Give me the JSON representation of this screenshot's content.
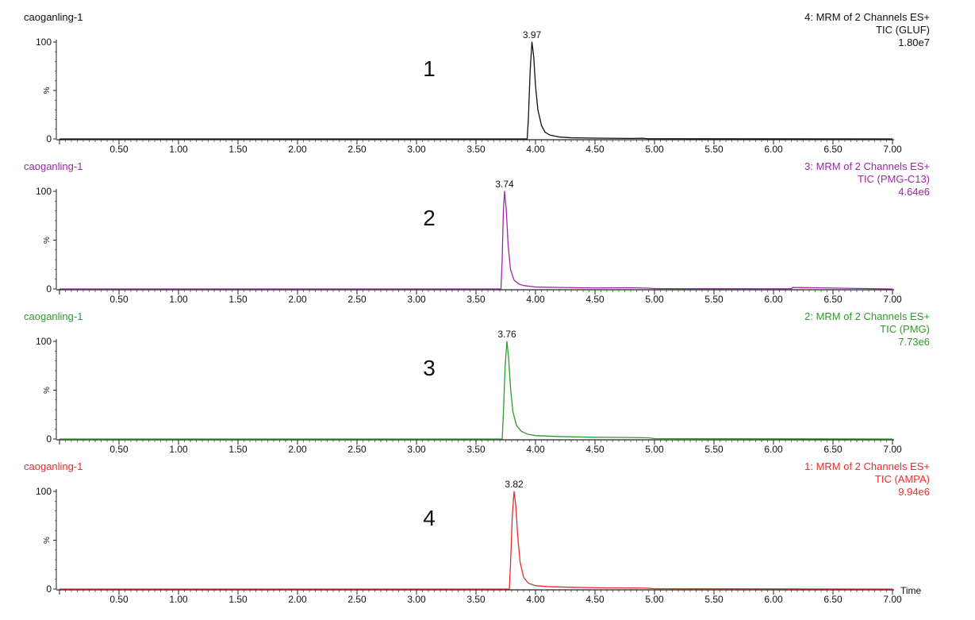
{
  "chart_data": [
    {
      "type": "line",
      "sample": "caoganling-1",
      "panel_number": "1",
      "header": [
        "4: MRM of 2 Channels ES+",
        "TIC (GLUF)",
        "1.80e7"
      ],
      "ylabel": "%",
      "xlim": [
        0,
        7.0
      ],
      "ylim": [
        0,
        100
      ],
      "xticks": [
        "0.50",
        "1.00",
        "1.50",
        "2.00",
        "2.50",
        "3.00",
        "3.50",
        "4.00",
        "4.50",
        "5.00",
        "5.50",
        "6.00",
        "6.50",
        "7.00"
      ],
      "yticks": [
        "0",
        "100"
      ],
      "peak_label": "3.97",
      "color": "#111111",
      "series": [
        {
          "x": [
            0,
            3.93,
            3.94,
            3.955,
            3.97,
            3.985,
            4.0,
            4.02,
            4.05,
            4.08,
            4.12,
            4.2,
            4.3,
            4.5,
            4.8,
            4.9,
            4.95,
            7.0
          ],
          "y": [
            0,
            0,
            20,
            70,
            100,
            85,
            55,
            30,
            14,
            7,
            4,
            2,
            1.2,
            0.8,
            0.5,
            0.7,
            0.2,
            0
          ]
        }
      ]
    },
    {
      "type": "line",
      "sample": "caoganling-1",
      "panel_number": "2",
      "header": [
        "3: MRM of 2 Channels ES+",
        "TIC (PMG-C13)",
        "4.64e6"
      ],
      "ylabel": "%",
      "xlim": [
        0,
        7.0
      ],
      "ylim": [
        0,
        100
      ],
      "xticks": [
        "0.50",
        "1.00",
        "1.50",
        "2.00",
        "2.50",
        "3.00",
        "3.50",
        "4.00",
        "4.50",
        "5.00",
        "5.50",
        "6.00",
        "6.50",
        "7.00"
      ],
      "yticks": [
        "0",
        "100"
      ],
      "peak_label": "3.74",
      "color": "#9b27a8",
      "series": [
        {
          "x": [
            0,
            3.71,
            3.72,
            3.73,
            3.74,
            3.755,
            3.77,
            3.79,
            3.82,
            3.86,
            3.9,
            4.0,
            4.2,
            4.5,
            4.8,
            4.95,
            5.0,
            6.15,
            6.16,
            7.0
          ],
          "y": [
            0,
            0,
            30,
            80,
            100,
            80,
            45,
            20,
            9,
            5,
            3.5,
            2,
            1.5,
            1,
            1.2,
            0.8,
            0.3,
            0.2,
            1.5,
            0
          ]
        }
      ]
    },
    {
      "type": "line",
      "sample": "caoganling-1",
      "panel_number": "3",
      "header": [
        "2: MRM of 2 Channels ES+",
        "TIC (PMG)",
        "7.73e6"
      ],
      "ylabel": "%",
      "xlim": [
        0,
        7.0
      ],
      "ylim": [
        0,
        100
      ],
      "xticks": [
        "0.50",
        "1.00",
        "1.50",
        "2.00",
        "2.50",
        "3.00",
        "3.50",
        "4.00",
        "4.50",
        "5.00",
        "5.50",
        "6.00",
        "6.50",
        "7.00"
      ],
      "yticks": [
        "0",
        "100"
      ],
      "peak_label": "3.76",
      "color": "#2e9b2e",
      "series": [
        {
          "x": [
            0,
            3.72,
            3.73,
            3.745,
            3.76,
            3.775,
            3.79,
            3.81,
            3.84,
            3.88,
            3.93,
            4.0,
            4.2,
            4.5,
            4.8,
            4.95,
            5.0,
            7.0
          ],
          "y": [
            0,
            0,
            25,
            75,
            100,
            82,
            52,
            28,
            14,
            8,
            5,
            3.5,
            2.5,
            1.8,
            1.5,
            1.2,
            0.4,
            0
          ]
        }
      ]
    },
    {
      "type": "line",
      "sample": "caoganling-1",
      "panel_number": "4",
      "header": [
        "1: MRM of 2 Channels ES+",
        "TIC (AMPA)",
        "9.94e6"
      ],
      "ylabel": "%",
      "xlabel": "Time",
      "xlim": [
        0,
        7.0
      ],
      "ylim": [
        0,
        100
      ],
      "xticks": [
        "0.50",
        "1.00",
        "1.50",
        "2.00",
        "2.50",
        "3.00",
        "3.50",
        "4.00",
        "4.50",
        "5.00",
        "5.50",
        "6.00",
        "6.50",
        "7.00"
      ],
      "yticks": [
        "0",
        "100"
      ],
      "peak_label": "3.82",
      "color": "#ee2a2a",
      "series": [
        {
          "x": [
            0,
            3.78,
            3.79,
            3.805,
            3.82,
            3.835,
            3.85,
            3.87,
            3.9,
            3.94,
            4.0,
            4.1,
            4.3,
            4.6,
            4.9,
            4.95,
            5.0,
            7.0
          ],
          "y": [
            0,
            0,
            25,
            75,
            100,
            85,
            55,
            28,
            12,
            6,
            3.5,
            2.5,
            1.8,
            1.2,
            1,
            0.8,
            0.3,
            0
          ]
        }
      ]
    }
  ]
}
